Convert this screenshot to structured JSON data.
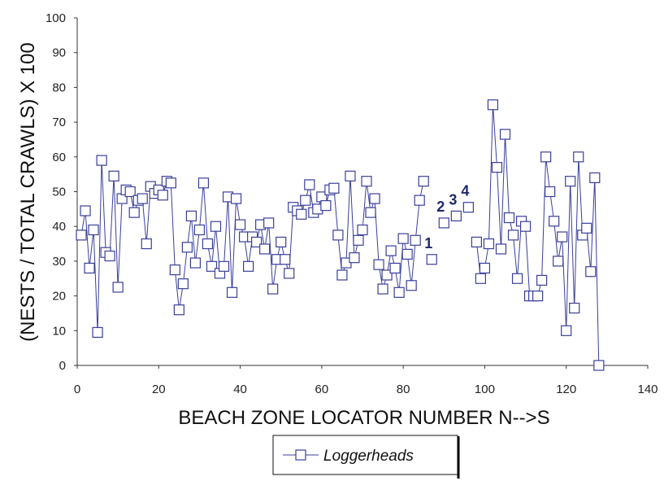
{
  "chart_data": {
    "type": "line",
    "xlabel": "BEACH ZONE LOCATOR NUMBER N-->S",
    "ylabel": "(NESTS / TOTAL CRAWLS) X 100",
    "xlim": [
      0,
      140
    ],
    "ylim": [
      0,
      100
    ],
    "xticks": [
      0,
      20,
      40,
      60,
      80,
      100,
      120,
      140
    ],
    "yticks": [
      0,
      10,
      20,
      30,
      40,
      50,
      60,
      70,
      80,
      90,
      100
    ],
    "grid": false,
    "legend_position": "bottom-center",
    "series": [
      {
        "name": "Loggerheads",
        "color": "#3a3f9a",
        "marker": "square-open",
        "segments": [
          [
            [
              1,
              37.5
            ],
            [
              2,
              44.5
            ],
            [
              3,
              28
            ],
            [
              4,
              39
            ],
            [
              5,
              9.5
            ],
            [
              6,
              59
            ],
            [
              7,
              32.5
            ],
            [
              8,
              31.5
            ],
            [
              9,
              54.5
            ],
            [
              10,
              22.5
            ],
            [
              11,
              48
            ],
            [
              12,
              50.5
            ],
            [
              13,
              50
            ],
            [
              14,
              44
            ],
            [
              15,
              47.5
            ],
            [
              16,
              48
            ],
            [
              17,
              35
            ],
            [
              18,
              51.5
            ],
            [
              19,
              49.5
            ],
            [
              20,
              50.5
            ],
            [
              21,
              49
            ],
            [
              22,
              53
            ],
            [
              23,
              52.5
            ],
            [
              24,
              27.5
            ],
            [
              25,
              16
            ],
            [
              26,
              23.5
            ],
            [
              27,
              34
            ],
            [
              28,
              43
            ],
            [
              29,
              29.5
            ],
            [
              30,
              39
            ],
            [
              31,
              52.5
            ],
            [
              32,
              35
            ],
            [
              33,
              28.5
            ],
            [
              34,
              40
            ],
            [
              35,
              26.5
            ],
            [
              36,
              28.5
            ],
            [
              37,
              48.5
            ],
            [
              38,
              21
            ],
            [
              39,
              48
            ],
            [
              40,
              40.5
            ],
            [
              41,
              37
            ],
            [
              42,
              28.5
            ],
            [
              43,
              37
            ],
            [
              44,
              35.5
            ],
            [
              45,
              40.5
            ],
            [
              46,
              33.5
            ],
            [
              47,
              41
            ],
            [
              48,
              22
            ],
            [
              49,
              30.5
            ],
            [
              50,
              35.5
            ],
            [
              51,
              30.5
            ],
            [
              52,
              26.5
            ],
            [
              53,
              45.5
            ],
            [
              54,
              44.5
            ],
            [
              55,
              43.5
            ],
            [
              56,
              47.5
            ],
            [
              57,
              52
            ],
            [
              58,
              44
            ],
            [
              59,
              45
            ],
            [
              60,
              48.5
            ],
            [
              61,
              46
            ],
            [
              62,
              50.5
            ],
            [
              63,
              51
            ],
            [
              64,
              37.5
            ],
            [
              65,
              26
            ],
            [
              66,
              29.5
            ],
            [
              67,
              54.5
            ],
            [
              68,
              31
            ],
            [
              69,
              36
            ],
            [
              70,
              39
            ],
            [
              71,
              53
            ],
            [
              72,
              44
            ],
            [
              73,
              48
            ],
            [
              74,
              29
            ],
            [
              75,
              22
            ],
            [
              76,
              26
            ],
            [
              77,
              33
            ],
            [
              78,
              28
            ],
            [
              79,
              21
            ],
            [
              80,
              36.5
            ],
            [
              81,
              32
            ],
            [
              82,
              23
            ],
            [
              83,
              36
            ],
            [
              84,
              47.5
            ],
            [
              85,
              53
            ]
          ],
          [
            [
              98,
              35.5
            ],
            [
              99,
              25
            ],
            [
              100,
              28
            ],
            [
              101,
              35
            ],
            [
              102,
              75
            ],
            [
              103,
              57
            ],
            [
              104,
              33.5
            ],
            [
              105,
              66.5
            ],
            [
              106,
              42.5
            ],
            [
              107,
              37.5
            ],
            [
              108,
              25
            ],
            [
              109,
              41.5
            ],
            [
              110,
              40
            ],
            [
              111,
              20
            ],
            [
              112,
              20
            ],
            [
              113,
              20
            ],
            [
              114,
              24.5
            ],
            [
              115,
              60
            ],
            [
              116,
              50
            ],
            [
              117,
              41.5
            ],
            [
              118,
              30
            ],
            [
              119,
              37
            ],
            [
              120,
              10
            ],
            [
              121,
              53
            ],
            [
              122,
              16.5
            ],
            [
              123,
              60
            ],
            [
              124,
              37.5
            ],
            [
              125,
              39.5
            ],
            [
              126,
              27
            ],
            [
              127,
              54
            ],
            [
              128,
              0
            ]
          ]
        ]
      }
    ],
    "isolated_points": [
      {
        "x": 87,
        "y": 30.5,
        "label": "1"
      },
      {
        "x": 90,
        "y": 41,
        "label": "2"
      },
      {
        "x": 93,
        "y": 43,
        "label": "3"
      },
      {
        "x": 96,
        "y": 45.5,
        "label": "4"
      }
    ]
  }
}
